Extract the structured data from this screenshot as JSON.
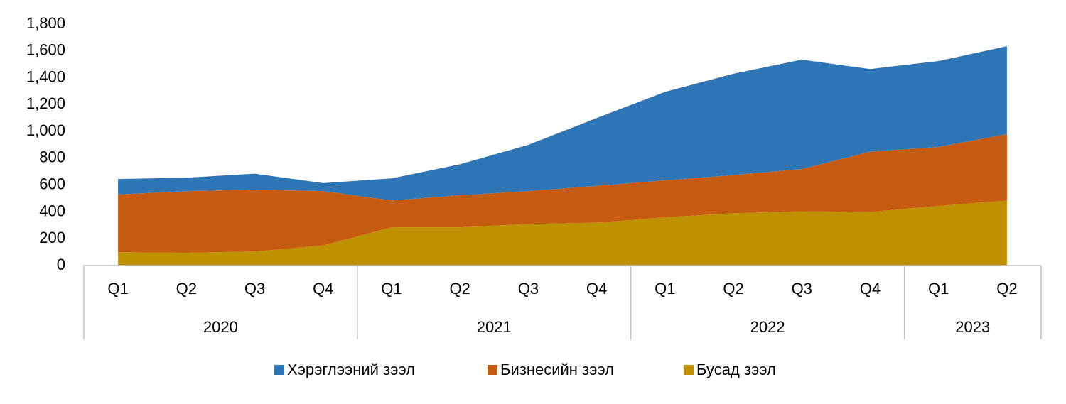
{
  "chart_data": {
    "type": "stacked_area",
    "categories": [
      "Q1",
      "Q2",
      "Q3",
      "Q4",
      "Q1",
      "Q2",
      "Q3",
      "Q4",
      "Q1",
      "Q2",
      "Q3",
      "Q4",
      "Q1",
      "Q2"
    ],
    "year_labels": [
      "2020",
      null,
      null,
      null,
      "2021",
      null,
      null,
      null,
      "2022",
      null,
      null,
      null,
      "2023",
      null
    ],
    "series": [
      {
        "name": "Хэрэглээний зээл",
        "color": "#2e75b6",
        "values": [
          115,
          100,
          120,
          60,
          165,
          230,
          345,
          505,
          660,
          755,
          815,
          615,
          640,
          655
        ]
      },
      {
        "name": "Бизнесийн зээл",
        "color": "#c55a11",
        "values": [
          430,
          460,
          460,
          405,
          200,
          240,
          245,
          275,
          275,
          285,
          315,
          450,
          440,
          495
        ]
      },
      {
        "name": "Бусад зээл",
        "color": "#bf9000",
        "values": [
          100,
          95,
          105,
          150,
          285,
          285,
          310,
          320,
          360,
          390,
          405,
          400,
          445,
          485
        ]
      }
    ],
    "ylim": [
      0,
      1800
    ],
    "yticks": [
      0,
      200,
      400,
      600,
      800,
      {
        "value": 1000,
        "label": "1,000"
      },
      {
        "value": 1200,
        "label": "1,200"
      },
      {
        "value": 1400,
        "label": "1,400"
      },
      {
        "value": 1600,
        "label": "1,600"
      },
      {
        "value": 1800,
        "label": "1,800"
      }
    ],
    "legend": "bottom"
  }
}
